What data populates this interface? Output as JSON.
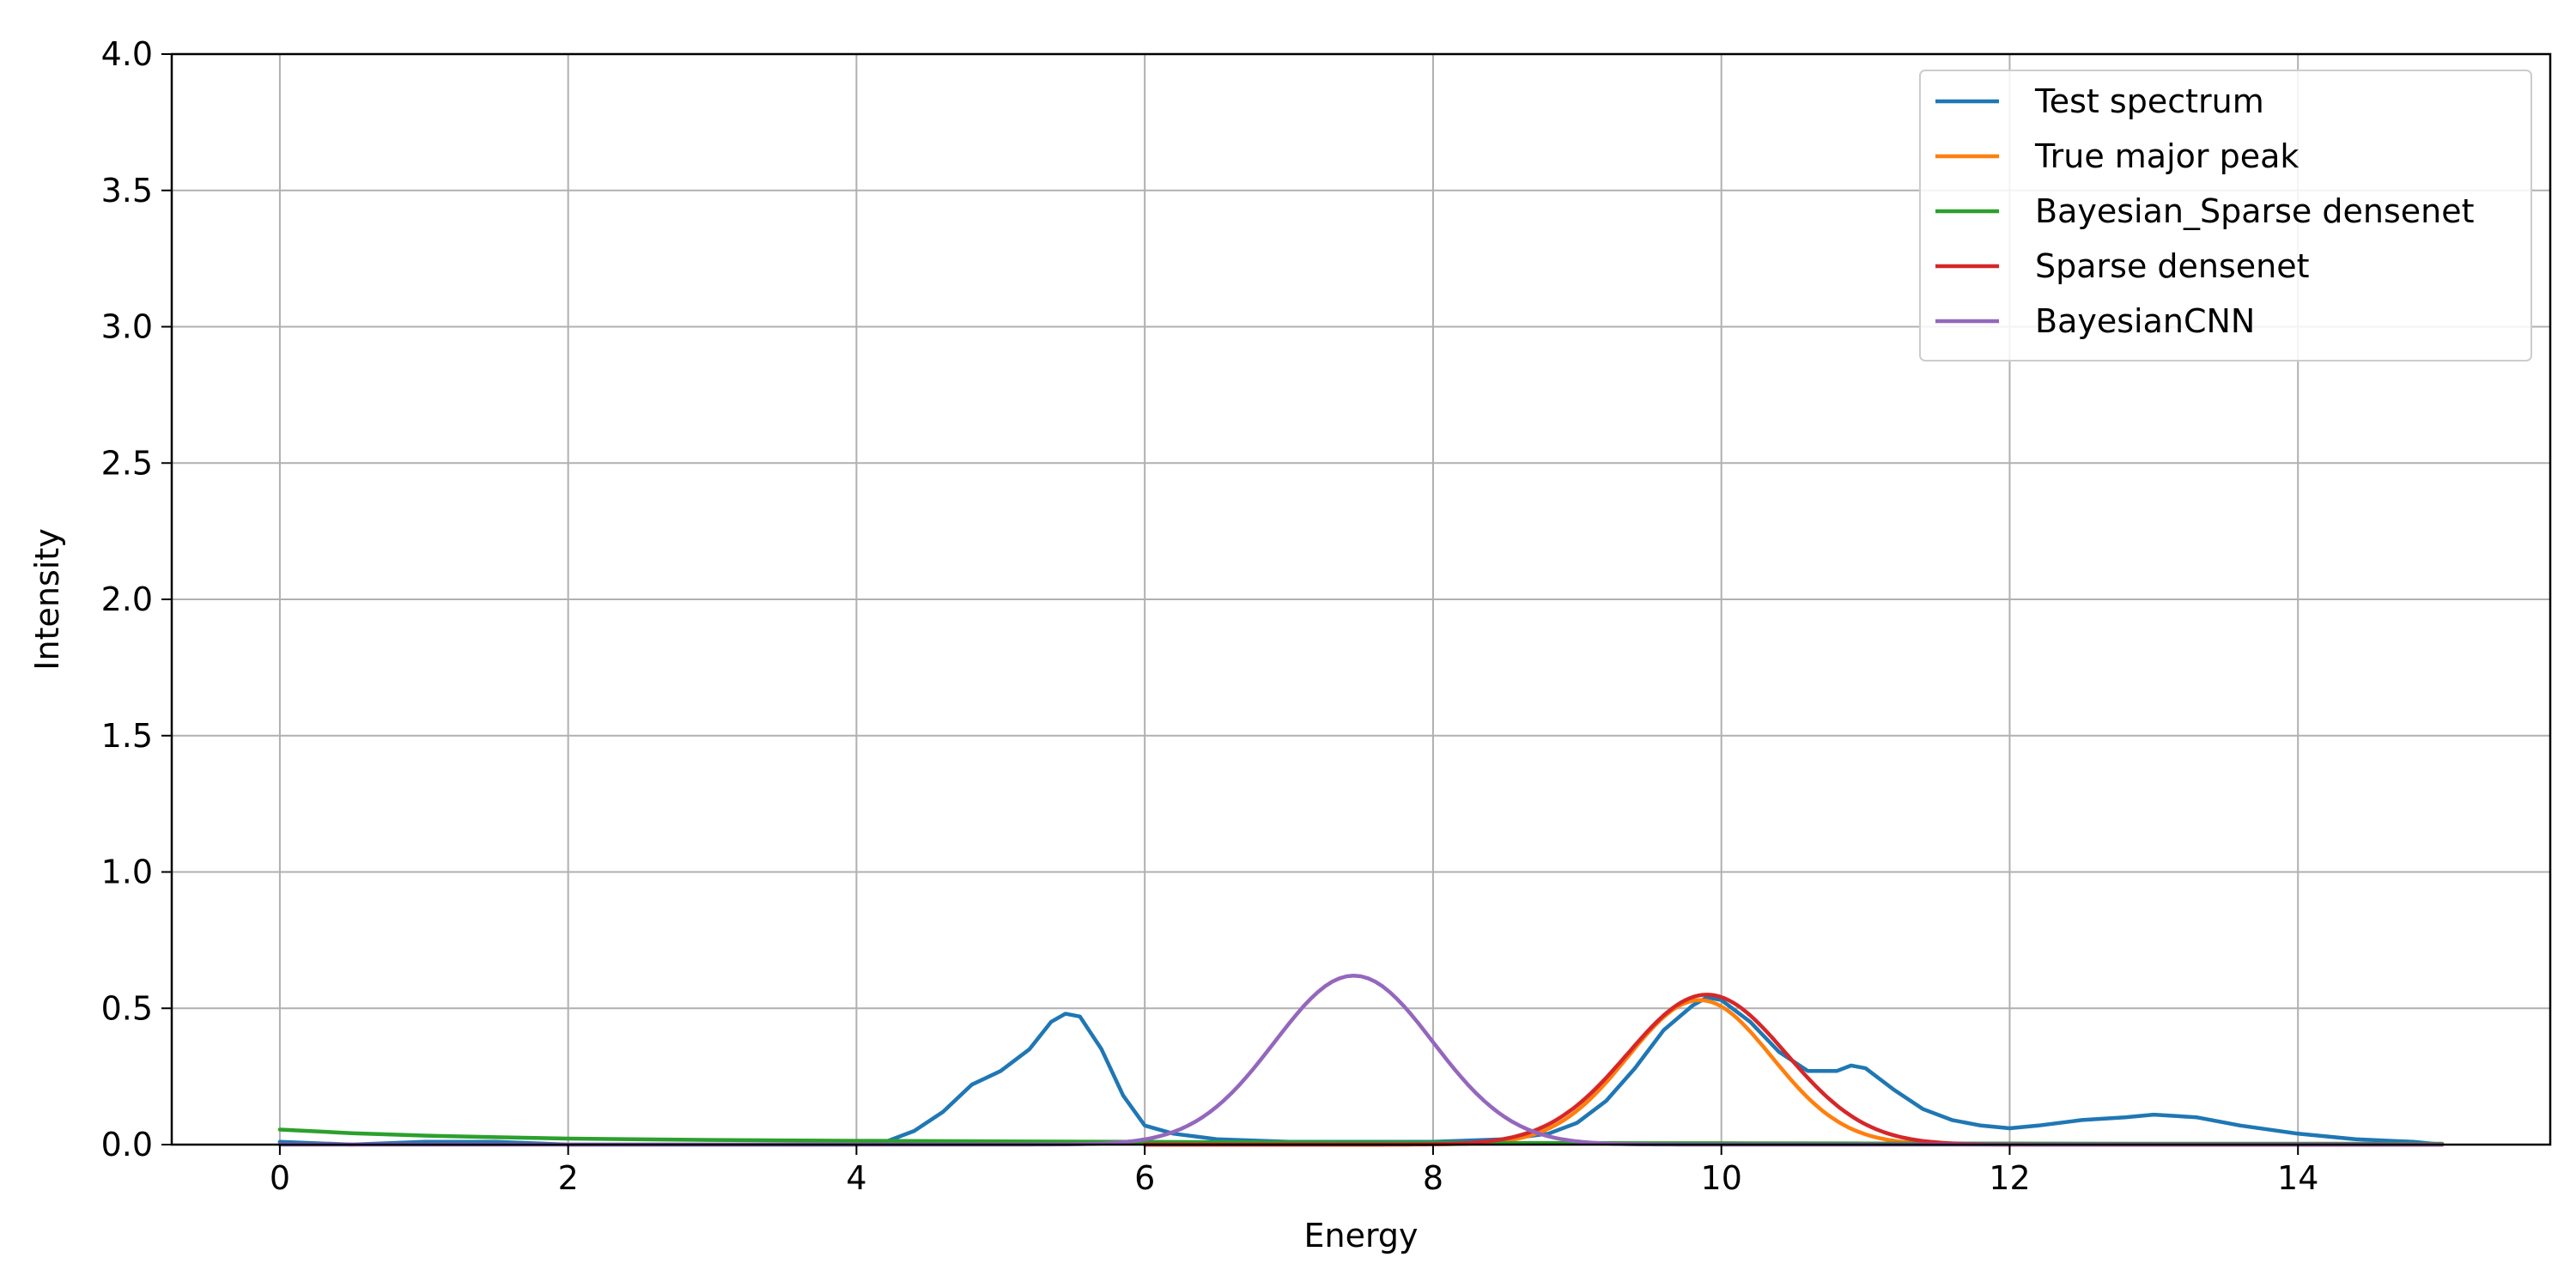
{
  "chart_data": {
    "type": "line",
    "title": "",
    "xlabel": "Energy",
    "ylabel": "Intensity",
    "xlim": [
      -0.75,
      15.75
    ],
    "ylim": [
      0,
      4.0
    ],
    "xticks": [
      0,
      2,
      4,
      6,
      8,
      10,
      12,
      14
    ],
    "xtick_labels": [
      "0",
      "2",
      "4",
      "6",
      "8",
      "10",
      "12",
      "14"
    ],
    "yticks": [
      0.0,
      0.5,
      1.0,
      1.5,
      2.0,
      2.5,
      3.0,
      3.5,
      4.0
    ],
    "ytick_labels": [
      "0.0",
      "0.5",
      "1.0",
      "1.5",
      "2.0",
      "2.5",
      "3.0",
      "3.5",
      "4.0"
    ],
    "grid": true,
    "legend_position": "top-right",
    "series": [
      {
        "name": "Test spectrum",
        "color": "#1f77b4",
        "x": [
          0,
          0.5,
          1.0,
          1.5,
          2.0,
          2.5,
          3.0,
          3.5,
          4.0,
          4.2,
          4.4,
          4.6,
          4.8,
          5.0,
          5.2,
          5.35,
          5.45,
          5.55,
          5.7,
          5.85,
          6.0,
          6.2,
          6.5,
          7.0,
          7.5,
          8.0,
          8.5,
          8.8,
          9.0,
          9.2,
          9.4,
          9.6,
          9.8,
          9.9,
          10.0,
          10.2,
          10.4,
          10.6,
          10.8,
          10.9,
          11.0,
          11.2,
          11.4,
          11.6,
          11.8,
          12.0,
          12.2,
          12.5,
          12.8,
          13.0,
          13.3,
          13.6,
          14.0,
          14.4,
          14.8,
          15.0
        ],
        "y": [
          0.01,
          0.0,
          0.01,
          0.01,
          0.0,
          0.0,
          0.0,
          0.0,
          0.0,
          0.01,
          0.05,
          0.12,
          0.22,
          0.27,
          0.35,
          0.45,
          0.48,
          0.47,
          0.35,
          0.18,
          0.07,
          0.04,
          0.02,
          0.01,
          0.01,
          0.01,
          0.02,
          0.04,
          0.08,
          0.16,
          0.28,
          0.42,
          0.51,
          0.54,
          0.53,
          0.45,
          0.34,
          0.27,
          0.27,
          0.29,
          0.28,
          0.2,
          0.13,
          0.09,
          0.07,
          0.06,
          0.07,
          0.09,
          0.1,
          0.11,
          0.1,
          0.07,
          0.04,
          0.02,
          0.01,
          0.0
        ]
      },
      {
        "name": "True major peak",
        "color": "#ff7f0e",
        "peak": {
          "amplitude": 0.53,
          "center": 9.85,
          "sigma": 0.5,
          "baseline": 0.0
        },
        "x_range": [
          6.0,
          15.0
        ]
      },
      {
        "name": "Bayesian_Sparse densenet",
        "color": "#2ca02c",
        "x": [
          0,
          0.5,
          1.0,
          1.5,
          2.0,
          3.0,
          4.0,
          5.0,
          6.0,
          7.0,
          8.0,
          8.5,
          9.0,
          9.5,
          10.0,
          11.0,
          12.0,
          13.0,
          14.0,
          15.0
        ],
        "y": [
          0.055,
          0.042,
          0.033,
          0.027,
          0.022,
          0.017,
          0.014,
          0.012,
          0.01,
          0.008,
          0.007,
          0.006,
          0.006,
          0.005,
          0.005,
          0.004,
          0.004,
          0.003,
          0.003,
          0.003
        ]
      },
      {
        "name": "Sparse densenet",
        "color": "#d62728",
        "peak": {
          "amplitude": 0.55,
          "center": 9.9,
          "sigma": 0.55,
          "baseline": 0.0
        },
        "x_range": [
          6.0,
          15.0
        ]
      },
      {
        "name": "BayesianCNN",
        "color": "#9467bd",
        "peak": {
          "amplitude": 0.62,
          "center": 7.45,
          "sigma": 0.55,
          "baseline": 0.0
        },
        "x_range": [
          0.0,
          15.0
        ]
      }
    ]
  }
}
